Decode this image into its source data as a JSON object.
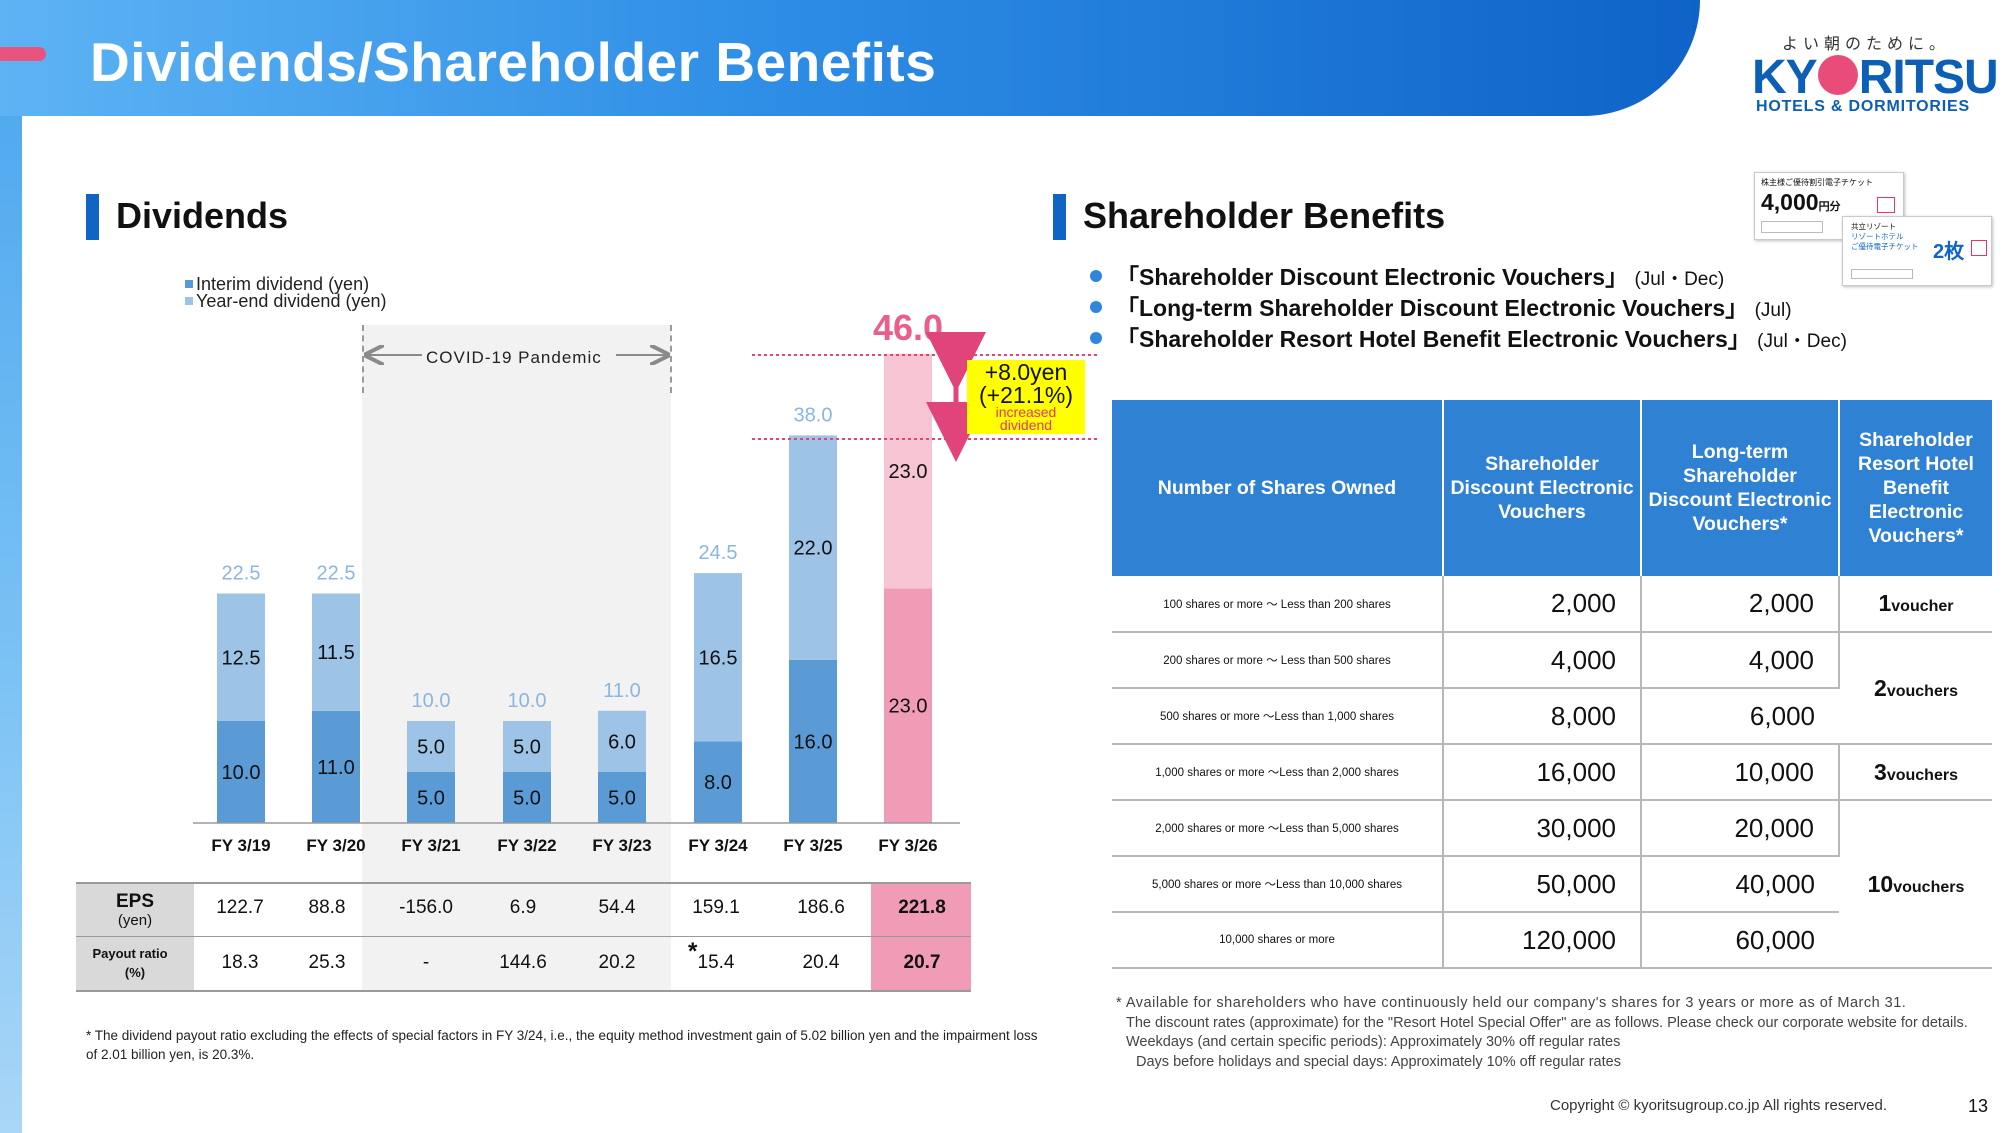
{
  "header": {
    "title": "Dividends/Shareholder Benefits",
    "logo_tagline": "よい朝のために。",
    "logo_left": "KY",
    "logo_right": "RITSU",
    "logo_sub": "HOTELS & DORMITORIES"
  },
  "dividends": {
    "section_title": "Dividends",
    "legend": [
      "Interim dividend (yen)",
      "Year-end dividend (yen)"
    ],
    "covid_label": "COVID-19 Pandemic",
    "increase": {
      "line1": "+8.0yen",
      "line2": "(+21.1%)",
      "line3": "increased",
      "line4": "dividend"
    },
    "eps_table": {
      "eps_label": "EPS",
      "eps_unit": "(yen)",
      "payout_label": "Payout ratio",
      "payout_unit": "(%)",
      "eps": [
        "122.7",
        "88.8",
        "-156.0",
        "6.9",
        "54.4",
        "159.1",
        "186.6",
        "221.8"
      ],
      "payout": [
        "18.3",
        "25.3",
        "-",
        "144.6",
        "20.2",
        "15.4",
        "20.4",
        "20.7"
      ],
      "asterisk": "*"
    },
    "footnote": "* The dividend payout ratio excluding the effects of special factors in FY 3/24, i.e., the equity method investment gain of 5.02 billion yen and the impairment loss of 2.01 billion yen, is 20.3%."
  },
  "chart_data": {
    "type": "bar",
    "stacked": true,
    "categories": [
      "FY 3/19",
      "FY 3/20",
      "FY 3/21",
      "FY 3/22",
      "FY 3/23",
      "FY 3/24",
      "FY 3/25",
      "FY 3/26"
    ],
    "series": [
      {
        "name": "Interim dividend (yen)",
        "values": [
          10.0,
          11.0,
          5.0,
          5.0,
          5.0,
          8.0,
          16.0,
          23.0
        ]
      },
      {
        "name": "Year-end dividend (yen)",
        "values": [
          12.5,
          11.5,
          5.0,
          5.0,
          6.0,
          16.5,
          22.0,
          23.0
        ]
      }
    ],
    "totals": [
      22.5,
      22.5,
      10.0,
      10.0,
      11.0,
      24.5,
      38.0,
      46.0
    ],
    "ylim": [
      0,
      46.0
    ],
    "colors": {
      "interim": "#5b9bd5",
      "year_end": "#9dc3e6",
      "interim_forecast": "#f19cb7",
      "year_end_forecast": "#f6c4d3",
      "total_label": "#8ab6e0",
      "total_label_forecast": "#ea5f8a"
    },
    "xlabel": "",
    "ylabel": "",
    "grid": false
  },
  "benefits": {
    "section_title": "Shareholder Benefits",
    "bullets": [
      {
        "name": "「Shareholder Discount Electronic Vouchers」",
        "period": "(Jul・Dec)"
      },
      {
        "name": "「Long-term Shareholder Discount Electronic Vouchers」",
        "period": "(Jul)"
      },
      {
        "name": "「Shareholder Resort Hotel Benefit Electronic Vouchers」",
        "period": "(Jul・Dec)"
      }
    ],
    "table": {
      "headers": [
        "Number of Shares Owned",
        "Shareholder Discount Electronic Vouchers",
        "Long-term Shareholder Discount Electronic Vouchers*",
        "Shareholder Resort Hotel Benefit Electronic Vouchers*"
      ],
      "rows": [
        {
          "shares": "100 shares or more ～ Less than 200 shares",
          "discount": "2,000",
          "longterm": "2,000"
        },
        {
          "shares": "200 shares or more ～ Less than 500 shares",
          "discount": "4,000",
          "longterm": "4,000"
        },
        {
          "shares": "500 shares or more ～Less than 1,000 shares",
          "discount": "8,000",
          "longterm": "6,000"
        },
        {
          "shares": "1,000 shares or more ～Less than 2,000 shares",
          "discount": "16,000",
          "longterm": "10,000"
        },
        {
          "shares": "2,000 shares or more ～Less than 5,000 shares",
          "discount": "30,000",
          "longterm": "20,000"
        },
        {
          "shares": "5,000 shares or more ～Less than 10,000 shares",
          "discount": "50,000",
          "longterm": "40,000"
        },
        {
          "shares": "10,000 shares or more",
          "discount": "120,000",
          "longterm": "60,000"
        }
      ],
      "resort": [
        {
          "count": "1",
          "unit": "voucher"
        },
        {
          "count": "2",
          "unit": "vouchers"
        },
        {
          "count": "3",
          "unit": "vouchers"
        },
        {
          "count": "10",
          "unit": "vouchers"
        }
      ]
    },
    "notes": [
      "* Available for shareholders who have continuously held our company's shares for 3 years or more as of March 31.",
      "The discount rates (approximate) for the \"Resort Hotel Special Offer\" are as follows. Please check our corporate website for details.",
      "Weekdays (and certain specific periods): Approximately 30% off regular rates",
      "Days before holidays and special days: Approximately 10% off regular rates"
    ],
    "ticket1": {
      "line1": "株主様ご優待割引電子チケット",
      "amount": "4,000",
      "unit": "円分"
    },
    "ticket2": {
      "line1": "共立リゾート",
      "line2": "リゾートホテル",
      "line3": "ご優待電子チケット",
      "count": "2枚"
    }
  },
  "footer": {
    "copyright": "Copyright © kyoritsugroup.co.jp All rights reserved.",
    "page": "13"
  }
}
